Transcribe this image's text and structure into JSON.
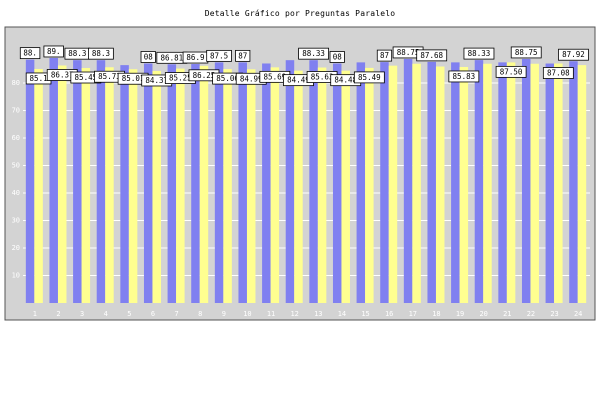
{
  "chart_data": {
    "type": "bar",
    "title": "Detalle Gráfico por Preguntas Paralelo",
    "xlabel": "",
    "ylabel": "",
    "ylim": [
      0,
      100
    ],
    "yticks": [
      10,
      20,
      30,
      40,
      50,
      60,
      70,
      80
    ],
    "grid": true,
    "categories": [
      "1",
      "2",
      "3",
      "4",
      "5",
      "6",
      "7",
      "8",
      "9",
      "10",
      "11",
      "12",
      "13",
      "14",
      "15",
      "16",
      "17",
      "18",
      "19",
      "20",
      "21",
      "22",
      "23",
      "24"
    ],
    "series": [
      {
        "color": "#8080f0",
        "values": [
          88.5,
          89.1,
          88.3,
          88.3,
          86.5,
          87.1,
          86.8,
          86.9,
          87.5,
          87.5,
          87.1,
          88.3,
          88.3,
          87.1,
          87.5,
          87.6,
          88.75,
          87.68,
          87.5,
          88.33,
          87.5,
          88.75,
          87.08,
          87.92
        ]
      },
      {
        "color": "#ffff90",
        "values": [
          85.1,
          86.37,
          85.45,
          85.73,
          85.01,
          84.37,
          85.25,
          86.25,
          85.06,
          84.99,
          85.69,
          84.49,
          85.63,
          84.48,
          85.49,
          86.3,
          87.0,
          86.0,
          85.83,
          87.0,
          87.5,
          87.0,
          87.08,
          86.5
        ]
      }
    ],
    "data_labels": [
      {
        "bar": 0,
        "series": 0,
        "text": "88."
      },
      {
        "bar": 0,
        "series": 1,
        "text": "85.1"
      },
      {
        "bar": 1,
        "series": 0,
        "text": "89."
      },
      {
        "bar": 1,
        "series": 1,
        "text": "86.37"
      },
      {
        "bar": 2,
        "series": 0,
        "text": "88.3"
      },
      {
        "bar": 2,
        "series": 1,
        "text": "85.45"
      },
      {
        "bar": 3,
        "series": 0,
        "text": "88.3"
      },
      {
        "bar": 3,
        "series": 1,
        "text": "85.73"
      },
      {
        "bar": 4,
        "series": 1,
        "text": "85.01"
      },
      {
        "bar": 5,
        "series": 0,
        "text": "08"
      },
      {
        "bar": 5,
        "series": 1,
        "text": "84.37"
      },
      {
        "bar": 6,
        "series": 0,
        "text": "86.81"
      },
      {
        "bar": 6,
        "series": 1,
        "text": "85.25"
      },
      {
        "bar": 7,
        "series": 0,
        "text": "86.9"
      },
      {
        "bar": 7,
        "series": 1,
        "text": "86.25"
      },
      {
        "bar": 8,
        "series": 0,
        "text": "87.5"
      },
      {
        "bar": 8,
        "series": 1,
        "text": "85.06"
      },
      {
        "bar": 9,
        "series": 0,
        "text": "87"
      },
      {
        "bar": 9,
        "series": 1,
        "text": "84.99"
      },
      {
        "bar": 10,
        "series": 1,
        "text": "85.69"
      },
      {
        "bar": 11,
        "series": 1,
        "text": "84.49"
      },
      {
        "bar": 12,
        "series": 0,
        "text": "88.33"
      },
      {
        "bar": 12,
        "series": 1,
        "text": "85.63"
      },
      {
        "bar": 13,
        "series": 0,
        "text": "08"
      },
      {
        "bar": 13,
        "series": 1,
        "text": "84.48"
      },
      {
        "bar": 14,
        "series": 1,
        "text": "85.49"
      },
      {
        "bar": 15,
        "series": 0,
        "text": "87"
      },
      {
        "bar": 16,
        "series": 0,
        "text": "88.75"
      },
      {
        "bar": 17,
        "series": 0,
        "text": "87.68"
      },
      {
        "bar": 18,
        "series": 1,
        "text": "85.83"
      },
      {
        "bar": 19,
        "series": 0,
        "text": "88.33"
      },
      {
        "bar": 20,
        "series": 1,
        "text": "87.50"
      },
      {
        "bar": 21,
        "series": 0,
        "text": "88.75"
      },
      {
        "bar": 22,
        "series": 1,
        "text": "87.08"
      },
      {
        "bar": 23,
        "series": 0,
        "text": "87.92"
      }
    ],
    "colors": {
      "plot_background": "#d3d3d3",
      "grid": "#ffffff",
      "axis_text": "#ffffff"
    }
  }
}
